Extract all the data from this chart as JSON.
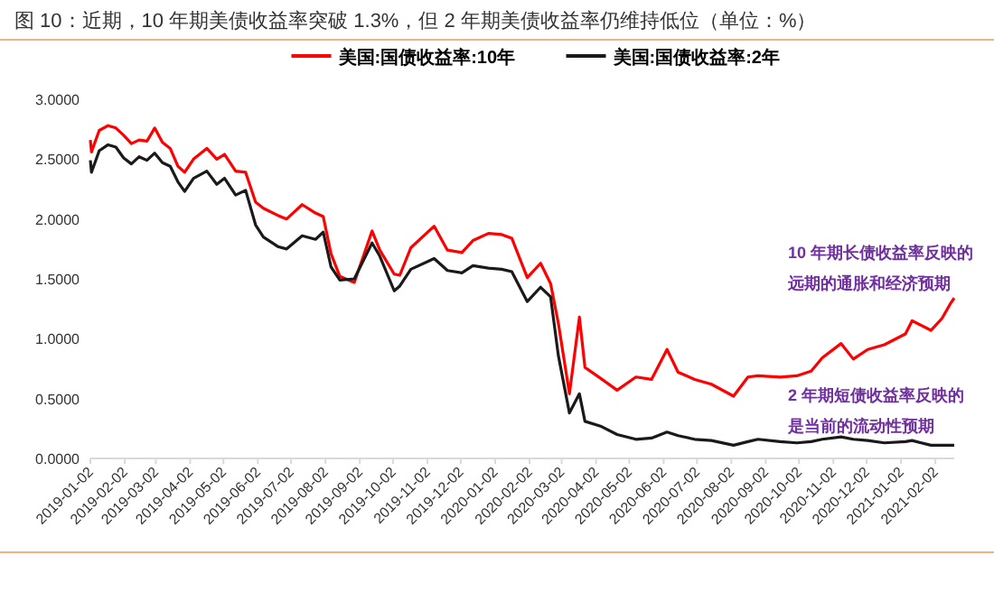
{
  "chart_data": {
    "type": "line",
    "title": "图 10：近期，10 年期美债收益率突破 1.3%，但 2 年期美债收益率仍维持低位（单位：%）",
    "x": [
      "2019-01-02",
      "2019-01-03",
      "2019-01-10",
      "2019-01-18",
      "2019-01-25",
      "2019-02-01",
      "2019-02-08",
      "2019-02-15",
      "2019-02-22",
      "2019-03-01",
      "2019-03-08",
      "2019-03-15",
      "2019-03-22",
      "2019-03-28",
      "2019-04-05",
      "2019-04-17",
      "2019-04-26",
      "2019-05-03",
      "2019-05-13",
      "2019-05-22",
      "2019-05-31",
      "2019-06-07",
      "2019-06-20",
      "2019-06-28",
      "2019-07-12",
      "2019-07-24",
      "2019-07-31",
      "2019-08-07",
      "2019-08-15",
      "2019-08-28",
      "2019-09-13",
      "2019-09-20",
      "2019-10-03",
      "2019-10-08",
      "2019-10-18",
      "2019-11-08",
      "2019-11-20",
      "2019-12-03",
      "2019-12-13",
      "2019-12-27",
      "2020-01-08",
      "2020-01-17",
      "2020-01-31",
      "2020-02-12",
      "2020-02-21",
      "2020-02-28",
      "2020-03-09",
      "2020-03-18",
      "2020-03-23",
      "2020-04-06",
      "2020-04-21",
      "2020-05-08",
      "2020-05-22",
      "2020-06-05",
      "2020-06-15",
      "2020-06-30",
      "2020-07-15",
      "2020-08-04",
      "2020-08-17",
      "2020-08-26",
      "2020-09-15",
      "2020-09-30",
      "2020-10-13",
      "2020-10-23",
      "2020-11-09",
      "2020-11-20",
      "2020-12-03",
      "2020-12-18",
      "2021-01-06",
      "2021-01-12",
      "2021-01-29",
      "2021-02-08",
      "2021-02-16",
      "2021-02-19"
    ],
    "series": [
      {
        "name": "美国:国债收益率:10年",
        "color": "#ff0000",
        "values": [
          2.66,
          2.56,
          2.74,
          2.78,
          2.76,
          2.7,
          2.63,
          2.66,
          2.65,
          2.76,
          2.64,
          2.59,
          2.44,
          2.39,
          2.5,
          2.59,
          2.5,
          2.54,
          2.4,
          2.39,
          2.14,
          2.09,
          2.03,
          2.0,
          2.12,
          2.05,
          2.02,
          1.71,
          1.52,
          1.47,
          1.9,
          1.74,
          1.54,
          1.53,
          1.76,
          1.94,
          1.74,
          1.72,
          1.82,
          1.88,
          1.87,
          1.84,
          1.51,
          1.63,
          1.46,
          1.13,
          0.54,
          1.18,
          0.76,
          0.67,
          0.57,
          0.68,
          0.66,
          0.91,
          0.72,
          0.66,
          0.62,
          0.52,
          0.68,
          0.69,
          0.68,
          0.69,
          0.73,
          0.84,
          0.96,
          0.83,
          0.91,
          0.95,
          1.04,
          1.15,
          1.07,
          1.17,
          1.3,
          1.34
        ]
      },
      {
        "name": "美国:国债收益率:2年",
        "color": "#1a1a1a",
        "values": [
          2.49,
          2.39,
          2.57,
          2.62,
          2.6,
          2.51,
          2.46,
          2.52,
          2.49,
          2.55,
          2.47,
          2.44,
          2.31,
          2.23,
          2.34,
          2.4,
          2.29,
          2.34,
          2.2,
          2.24,
          1.95,
          1.85,
          1.77,
          1.75,
          1.86,
          1.83,
          1.89,
          1.6,
          1.49,
          1.5,
          1.8,
          1.69,
          1.4,
          1.44,
          1.58,
          1.67,
          1.57,
          1.55,
          1.61,
          1.59,
          1.58,
          1.56,
          1.31,
          1.43,
          1.35,
          0.86,
          0.38,
          0.54,
          0.31,
          0.27,
          0.2,
          0.16,
          0.17,
          0.22,
          0.19,
          0.16,
          0.15,
          0.11,
          0.14,
          0.16,
          0.14,
          0.13,
          0.14,
          0.16,
          0.18,
          0.16,
          0.15,
          0.13,
          0.14,
          0.15,
          0.11,
          0.11,
          0.11,
          0.11
        ]
      }
    ],
    "xlim": [
      "2019-01-02",
      "2021-02-19"
    ],
    "xticks": [
      "2019-01-02",
      "2019-02-02",
      "2019-03-02",
      "2019-04-02",
      "2019-05-02",
      "2019-06-02",
      "2019-07-02",
      "2019-08-02",
      "2019-09-02",
      "2019-10-02",
      "2019-11-02",
      "2019-12-02",
      "2020-01-02",
      "2020-02-02",
      "2020-03-02",
      "2020-04-02",
      "2020-05-02",
      "2020-06-02",
      "2020-07-02",
      "2020-08-02",
      "2020-09-02",
      "2020-10-02",
      "2020-11-02",
      "2020-12-02",
      "2021-01-02",
      "2021-02-02"
    ],
    "ylim": [
      0,
      3
    ],
    "yticks": [
      {
        "value": 0,
        "label": "0.0000"
      },
      {
        "value": 0.5,
        "label": "0.5000"
      },
      {
        "value": 1,
        "label": "1.0000"
      },
      {
        "value": 1.5,
        "label": "1.5000"
      },
      {
        "value": 2,
        "label": "2.0000"
      },
      {
        "value": 2.5,
        "label": "2.5000"
      },
      {
        "value": 3,
        "label": "3.0000"
      }
    ],
    "legend": "top",
    "annotations": [
      "10 年期长债收益率反映的",
      "远期的通胀和经济预期",
      "2  年期短债收益率反映的",
      "是当前的流动性预期"
    ]
  }
}
